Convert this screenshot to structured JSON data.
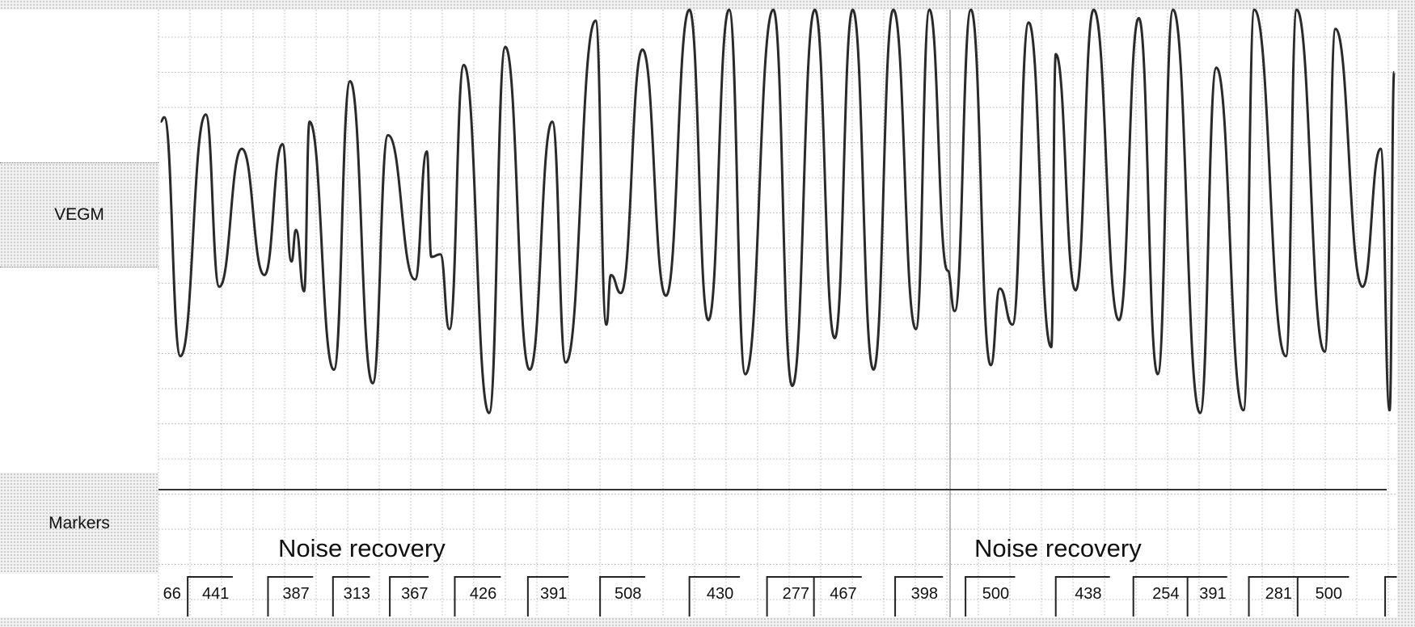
{
  "channels": {
    "vegm": "VEGM",
    "markers": "Markers"
  },
  "annotations": [
    "Noise recovery",
    "Noise recovery"
  ],
  "chart_data": {
    "type": "line",
    "title": "",
    "series_labels": [
      "VEGM",
      "Markers"
    ],
    "marker_intervals_ms": [
      "66",
      "441",
      "387",
      "313",
      "367",
      "426",
      "391",
      "508",
      "430",
      "277",
      "467",
      "398",
      "500",
      "438",
      "254",
      "391",
      "281",
      "500"
    ],
    "grid": true,
    "colors": {
      "trace": "#2a2a2a",
      "grid": "#b5b5b5"
    }
  }
}
